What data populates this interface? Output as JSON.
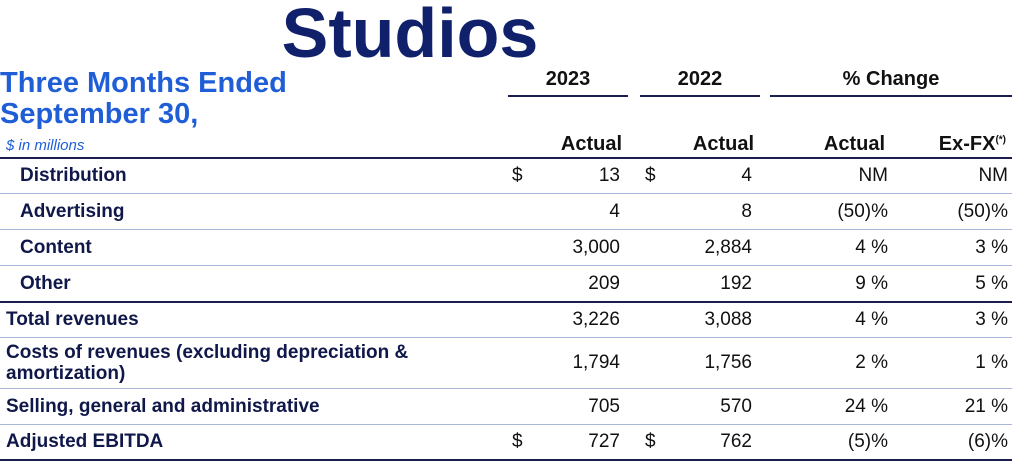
{
  "title": "Studios",
  "period_line1": "Three Months Ended",
  "period_line2": "September 30,",
  "units": "$ in millions",
  "year_headers": [
    "2023",
    "2022",
    "% Change"
  ],
  "column_headers": [
    "Actual",
    "Actual",
    "Actual",
    "Ex-FX"
  ],
  "exfx_note": "(*)",
  "rows": [
    {
      "label": "Distribution",
      "dollar": "$",
      "v2023": "13",
      "v2022": "4",
      "actual": "NM",
      "exfx": "NM"
    },
    {
      "label": "Advertising",
      "dollar": "",
      "v2023": "4",
      "v2022": "8",
      "actual": "(50)%",
      "exfx": "(50)%"
    },
    {
      "label": "Content",
      "dollar": "",
      "v2023": "3,000",
      "v2022": "2,884",
      "actual": "4 %",
      "exfx": "3 %"
    },
    {
      "label": "Other",
      "dollar": "",
      "v2023": "209",
      "v2022": "192",
      "actual": "9 %",
      "exfx": "5 %"
    },
    {
      "label": "Total revenues",
      "dollar": "",
      "v2023": "3,226",
      "v2022": "3,088",
      "actual": "4 %",
      "exfx": "3 %"
    },
    {
      "label": "Costs of revenues (excluding depreciation & amortization)",
      "dollar": "",
      "v2023": "1,794",
      "v2022": "1,756",
      "actual": "2 %",
      "exfx": "1 %"
    },
    {
      "label": "Selling, general and administrative",
      "dollar": "",
      "v2023": "705",
      "v2022": "570",
      "actual": "24 %",
      "exfx": "21 %"
    },
    {
      "label": "Adjusted EBITDA",
      "dollar": "$",
      "v2023": "727",
      "v2022": "762",
      "actual": "(5)%",
      "exfx": "(6)%"
    }
  ]
}
